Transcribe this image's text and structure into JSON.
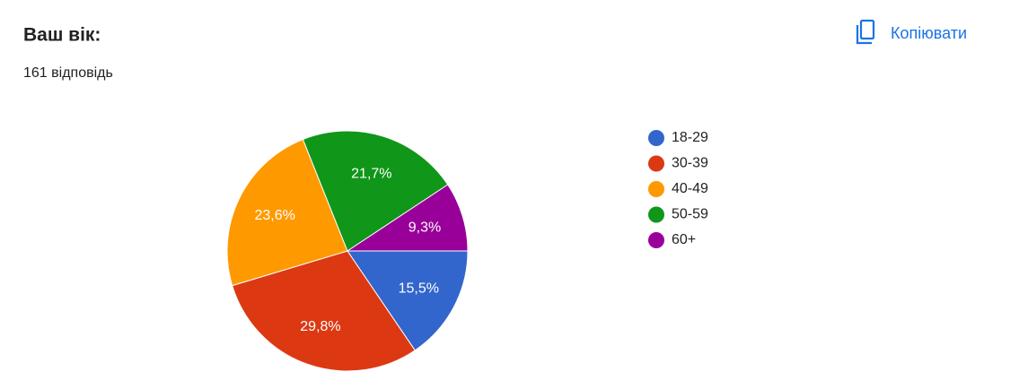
{
  "chart_data": {
    "type": "pie",
    "title": "Ваш вік:",
    "subtitle": "161 відповідь",
    "categories": [
      "18-29",
      "30-39",
      "40-49",
      "50-59",
      "60+"
    ],
    "values": [
      15.5,
      29.8,
      23.6,
      21.7,
      9.3
    ],
    "value_labels": [
      "15,5%",
      "29,8%",
      "23,6%",
      "21,7%",
      "9,3%"
    ],
    "colors": [
      "#3366cc",
      "#dc3912",
      "#ff9900",
      "#109618",
      "#990099"
    ],
    "legend": "right"
  },
  "copy_button": "Копіювати"
}
